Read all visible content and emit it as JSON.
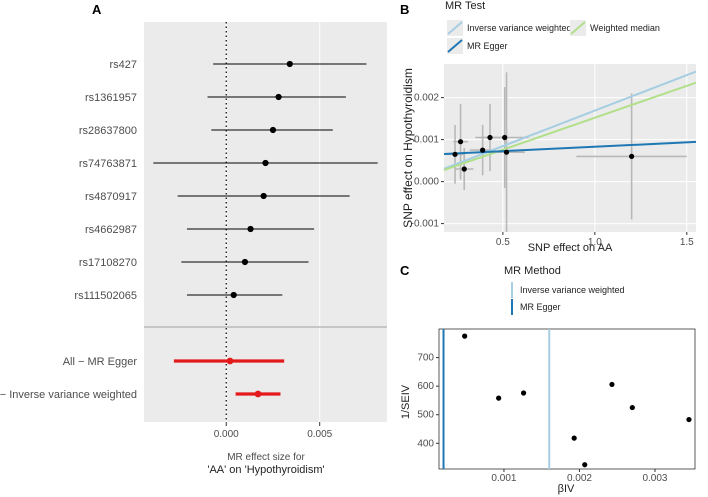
{
  "chart_data": [
    {
      "panel": "A",
      "type": "forest",
      "snps": [
        {
          "label": "rs427",
          "estimate": 0.0034,
          "ci": [
            -0.0007,
            0.0075
          ]
        },
        {
          "label": "rs1361957",
          "estimate": 0.0028,
          "ci": [
            -0.001,
            0.0064
          ]
        },
        {
          "label": "rs28637800",
          "estimate": 0.0025,
          "ci": [
            -0.0008,
            0.0057
          ]
        },
        {
          "label": "rs74763871",
          "estimate": 0.0021,
          "ci": [
            -0.0039,
            0.0081
          ]
        },
        {
          "label": "rs4870917",
          "estimate": 0.002,
          "ci": [
            -0.0026,
            0.0066
          ]
        },
        {
          "label": "rs4662987",
          "estimate": 0.0013,
          "ci": [
            -0.0021,
            0.0047
          ]
        },
        {
          "label": "rs17108270",
          "estimate": 0.001,
          "ci": [
            -0.0024,
            0.0044
          ]
        },
        {
          "label": "rs111502065",
          "estimate": 0.0004,
          "ci": [
            -0.0021,
            0.003
          ]
        }
      ],
      "summary": [
        {
          "label": "All − MR Egger",
          "estimate": 0.0002,
          "ci": [
            -0.0028,
            0.0031
          ]
        },
        {
          "label": "All − Inverse variance weighted",
          "estimate": 0.0017,
          "ci": [
            0.0005,
            0.0029
          ]
        }
      ],
      "xlim": [
        -0.0044,
        0.0086
      ],
      "xticks": [
        0.0,
        0.005
      ],
      "xtick_labels": [
        "0.000",
        "0.005"
      ],
      "xlabel_line1": "MR effect size for",
      "xlabel_line2": "'AA' on 'Hypothyroidism'",
      "summary_color": "#e31a1c"
    },
    {
      "panel": "B",
      "type": "scatter",
      "legend_title": "MR Test",
      "legend": [
        {
          "name": "Inverse variance weighted",
          "color": "#a6cee3"
        },
        {
          "name": "Weighted median",
          "color": "#b2df8a"
        },
        {
          "name": "MR Egger",
          "color": "#1f78b4"
        }
      ],
      "points": [
        {
          "x": 0.24,
          "y": 0.00065,
          "xerr": 0.05,
          "yerr": 0.0007
        },
        {
          "x": 0.27,
          "y": 0.00095,
          "xerr": 0.04,
          "yerr": 0.0009
        },
        {
          "x": 0.29,
          "y": 0.0003,
          "xerr": 0.05,
          "yerr": 0.0005
        },
        {
          "x": 0.39,
          "y": 0.00075,
          "xerr": 0.07,
          "yerr": 0.0006
        },
        {
          "x": 0.43,
          "y": 0.00105,
          "xerr": 0.08,
          "yerr": 0.0008
        },
        {
          "x": 0.51,
          "y": 0.00105,
          "xerr": 0.13,
          "yerr": 0.0012
        },
        {
          "x": 0.52,
          "y": 0.0007,
          "xerr": 0.1,
          "yerr": 0.0019
        },
        {
          "x": 1.2,
          "y": 0.0006,
          "xerr": 0.3,
          "yerr": 0.0015
        }
      ],
      "lines": [
        {
          "name": "Inverse variance weighted",
          "intercept": 0.0,
          "slope": 0.00169
        },
        {
          "name": "Weighted median",
          "intercept": 0.0,
          "slope": 0.00152
        },
        {
          "name": "MR Egger",
          "intercept": 0.00062,
          "slope": 0.00021
        }
      ],
      "xlim": [
        0.18,
        1.55
      ],
      "ylim": [
        -0.0012,
        0.0028
      ],
      "xticks": [
        0.5,
        1.0,
        1.5
      ],
      "xtick_labels": [
        "0.5",
        "1.0",
        "1.5"
      ],
      "yticks": [
        -0.001,
        0.0,
        0.001,
        0.002
      ],
      "ytick_labels": [
        "-0.001",
        "0.000",
        "0.001",
        "0.002"
      ],
      "xlabel": "SNP effect on AA",
      "ylabel": "SNP effect on Hypothyroidism"
    },
    {
      "panel": "C",
      "type": "funnel",
      "legend_title": "MR Method",
      "legend": [
        {
          "name": "Inverse variance weighted",
          "color": "#a6cee3"
        },
        {
          "name": "MR Egger",
          "color": "#1f78b4"
        }
      ],
      "points": [
        {
          "x": 0.00048,
          "y": 775
        },
        {
          "x": 0.00093,
          "y": 558
        },
        {
          "x": 0.00126,
          "y": 576
        },
        {
          "x": 0.00193,
          "y": 418
        },
        {
          "x": 0.00207,
          "y": 325
        },
        {
          "x": 0.00243,
          "y": 606
        },
        {
          "x": 0.0027,
          "y": 525
        },
        {
          "x": 0.00345,
          "y": 483
        }
      ],
      "vlines": [
        {
          "name": "Inverse variance weighted",
          "x": 0.0016
        },
        {
          "name": "MR Egger",
          "x": 0.0002
        }
      ],
      "xlim": [
        0.00014,
        0.00353
      ],
      "ylim": [
        310,
        800
      ],
      "xticks": [
        0.001,
        0.002,
        0.003
      ],
      "xtick_labels": [
        "0.001",
        "0.002",
        "0.003"
      ],
      "yticks": [
        400,
        500,
        600,
        700
      ],
      "ytick_labels": [
        "400",
        "500",
        "600",
        "700"
      ],
      "xlabel": "βIV",
      "ylabel": "1/SEIV"
    }
  ]
}
